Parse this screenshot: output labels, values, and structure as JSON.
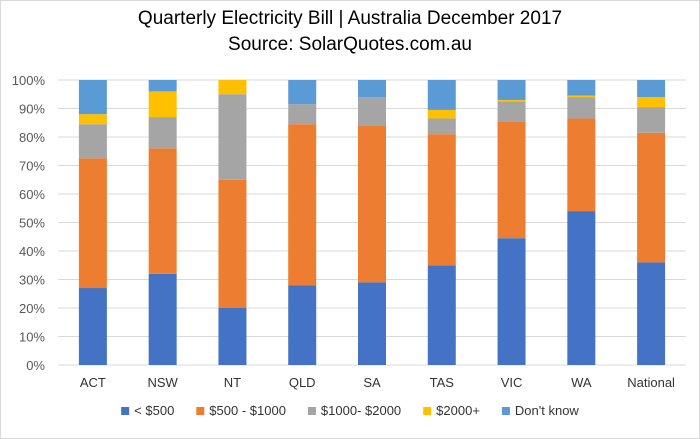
{
  "chart_data": {
    "type": "bar",
    "stacked": true,
    "title": "Quarterly Electricity Bill | Australia December 2017",
    "subtitle": "Source: SolarQuotes.com.au",
    "xlabel": "",
    "ylabel": "",
    "ylim": [
      0,
      100
    ],
    "yticks": [
      "0%",
      "10%",
      "20%",
      "30%",
      "40%",
      "50%",
      "60%",
      "70%",
      "80%",
      "90%",
      "100%"
    ],
    "grid": true,
    "legend_position": "bottom",
    "categories": [
      "ACT",
      "NSW",
      "NT",
      "QLD",
      "SA",
      "TAS",
      "VIC",
      "WA",
      "National"
    ],
    "series": [
      {
        "name": "< $500",
        "color": "#4472C4",
        "values": [
          27,
          32,
          20,
          28,
          29,
          35,
          44.5,
          54,
          36
        ]
      },
      {
        "name": "$500 - $1000",
        "color": "#ED7D31",
        "values": [
          45.5,
          44,
          45,
          56.5,
          55,
          46,
          41,
          32.5,
          45.5
        ]
      },
      {
        "name": "$1000- $2000",
        "color": "#A5A5A5",
        "values": [
          12,
          11,
          30,
          7,
          10,
          5.5,
          7,
          7.5,
          9
        ]
      },
      {
        "name": "$2000+",
        "color": "#FFC000",
        "values": [
          3.5,
          9,
          5,
          0,
          0,
          3,
          0.5,
          0.5,
          3.5
        ]
      },
      {
        "name": "Don't know",
        "color": "#5B9BD5",
        "values": [
          12,
          4,
          0,
          8.5,
          6,
          10.5,
          7,
          5.5,
          6
        ]
      }
    ]
  }
}
